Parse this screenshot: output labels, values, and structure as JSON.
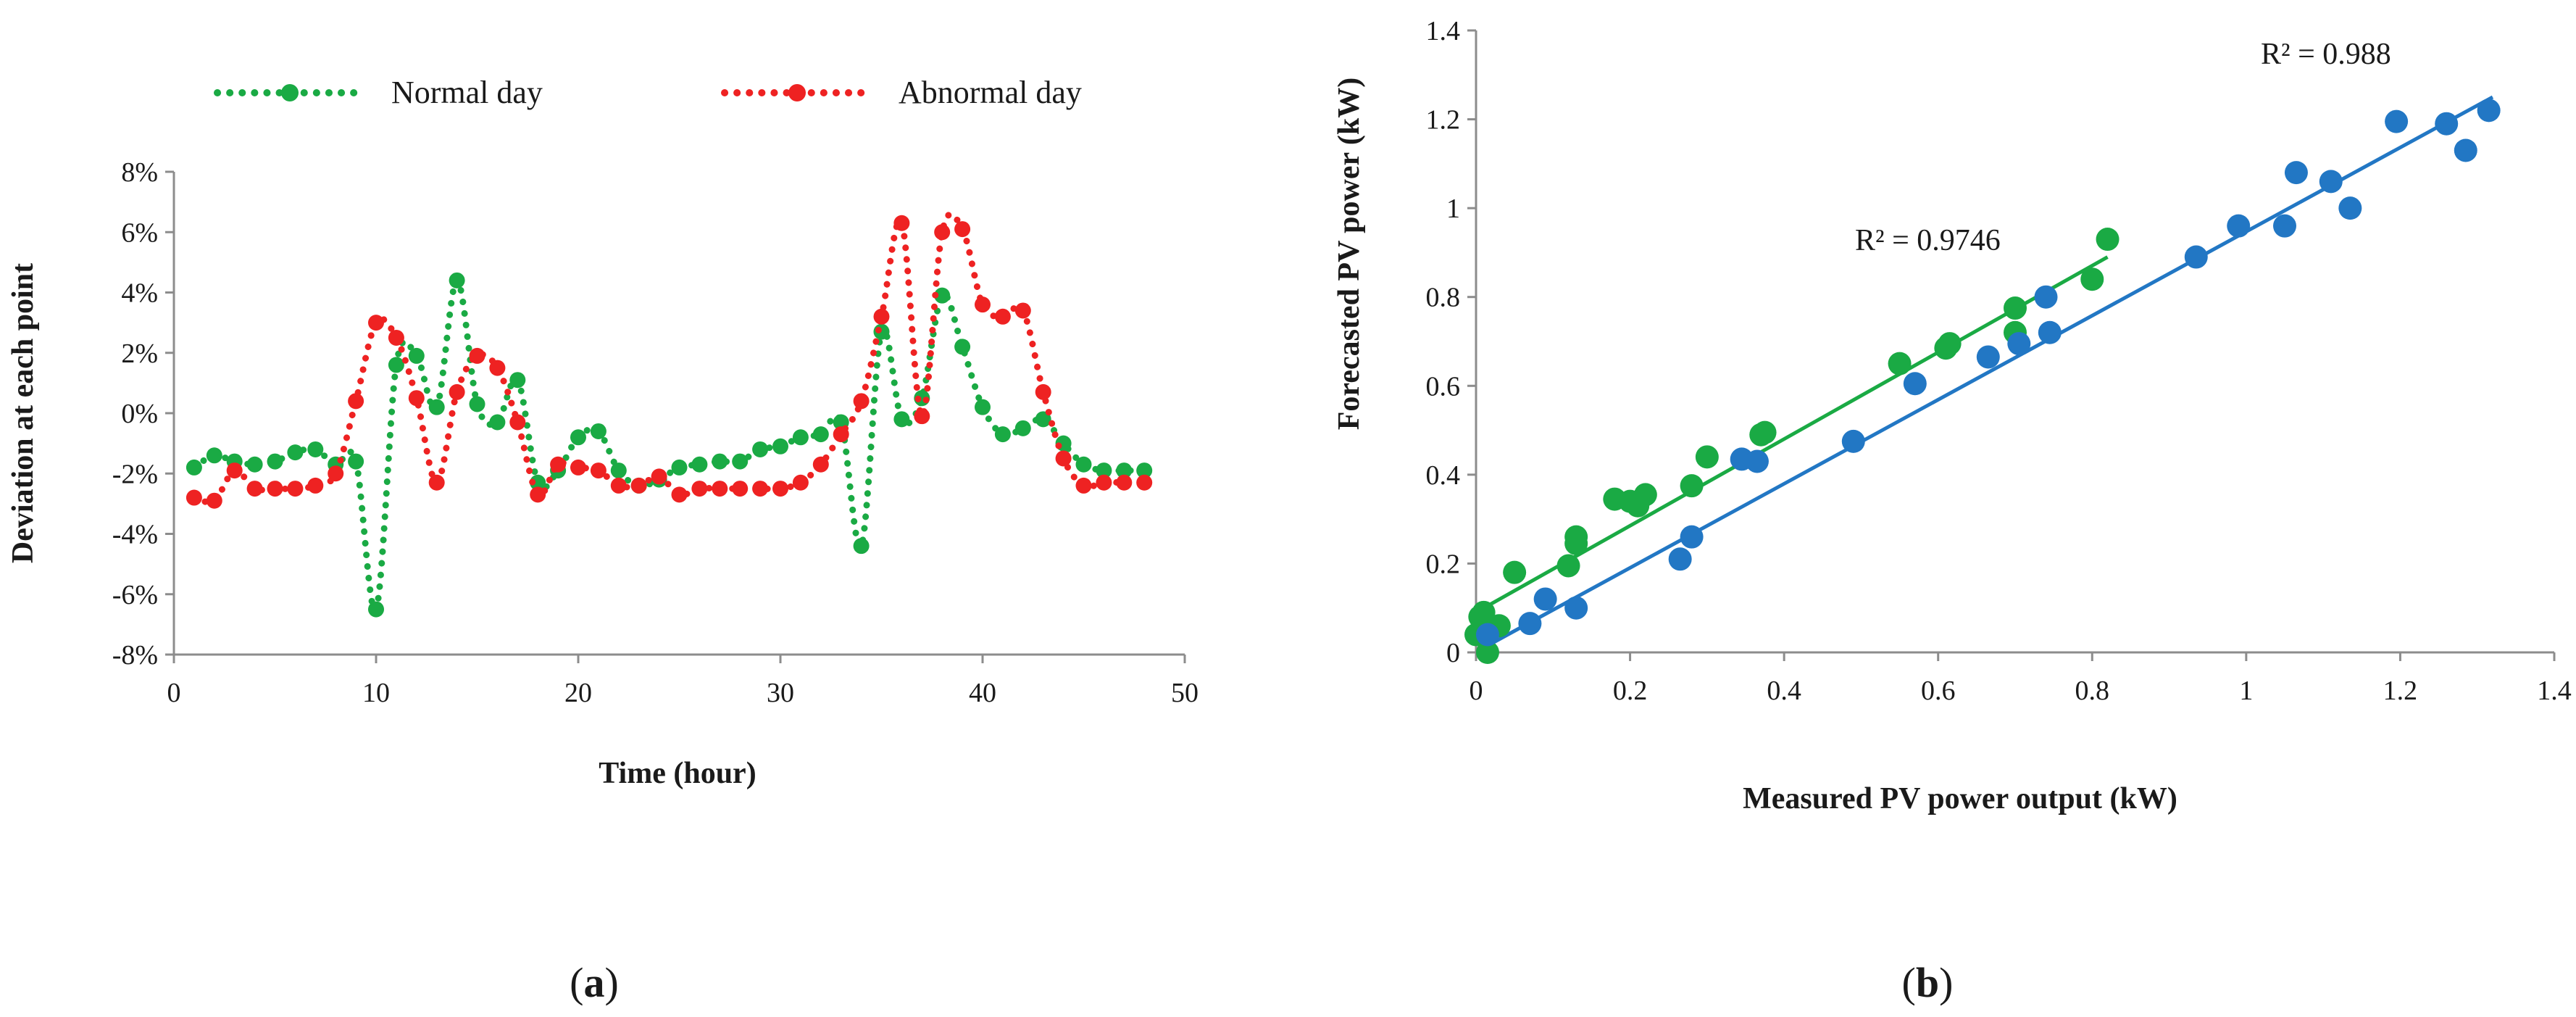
{
  "chart_data": [
    {
      "type": "line",
      "panel_label": "a",
      "title": "",
      "xlabel": "Time (hour)",
      "ylabel": "Deviation at each point",
      "xlim": [
        0,
        50
      ],
      "ylim": [
        -8,
        8
      ],
      "xticks": [
        "0",
        "10",
        "20",
        "30",
        "40",
        "50"
      ],
      "yticks": [
        "-8%",
        "-6%",
        "-4%",
        "-2%",
        "0%",
        "2%",
        "4%",
        "6%",
        "8%"
      ],
      "grid": false,
      "legend_position": "top",
      "series": [
        {
          "name": "Normal day",
          "color": "#1aaa44",
          "x": [
            1,
            2,
            3,
            4,
            5,
            6,
            7,
            8,
            9,
            10,
            11,
            12,
            13,
            14,
            15,
            16,
            17,
            18,
            19,
            20,
            21,
            22,
            23,
            24,
            25,
            26,
            27,
            28,
            29,
            30,
            31,
            32,
            33,
            34,
            35,
            36,
            37,
            38,
            39,
            40,
            41,
            42,
            43,
            44,
            45,
            46,
            47,
            48
          ],
          "y": [
            -1.8,
            -1.4,
            -1.6,
            -1.7,
            -1.6,
            -1.3,
            -1.2,
            -1.7,
            -1.6,
            -6.5,
            1.6,
            1.9,
            0.2,
            4.4,
            0.3,
            -0.3,
            1.1,
            -2.3,
            -1.9,
            -0.8,
            -0.6,
            -1.9,
            -2.4,
            -2.2,
            -1.8,
            -1.7,
            -1.6,
            -1.6,
            -1.2,
            -1.1,
            -0.8,
            -0.7,
            -0.3,
            -4.4,
            2.7,
            -0.2,
            0.5,
            3.9,
            2.2,
            0.2,
            -0.7,
            -0.5,
            -0.2,
            -1.0,
            -1.7,
            -1.9,
            -1.9,
            -1.9
          ]
        },
        {
          "name": "Abnormal day",
          "color": "#ee2222",
          "x": [
            1,
            2,
            3,
            4,
            5,
            6,
            7,
            8,
            9,
            10,
            11,
            12,
            13,
            14,
            15,
            16,
            17,
            18,
            19,
            20,
            21,
            22,
            23,
            24,
            25,
            26,
            27,
            28,
            29,
            30,
            31,
            32,
            33,
            34,
            35,
            36,
            37,
            38,
            39,
            40,
            41,
            42,
            43,
            44,
            45,
            46,
            47,
            48
          ],
          "y": [
            -2.8,
            -2.9,
            -1.9,
            -2.5,
            -2.5,
            -2.5,
            -2.4,
            -2.0,
            0.4,
            3.0,
            2.5,
            0.5,
            -2.3,
            0.7,
            1.9,
            1.5,
            -0.3,
            -2.7,
            -1.7,
            -1.8,
            -1.9,
            -2.4,
            -2.4,
            -2.1,
            -2.7,
            -2.5,
            -2.5,
            -2.5,
            -2.5,
            -2.5,
            -2.3,
            -1.7,
            -0.7,
            0.4,
            3.2,
            6.3,
            -0.1,
            6.0,
            6.1,
            3.6,
            3.2,
            3.4,
            0.7,
            -1.5,
            -2.4,
            -2.3,
            -2.3,
            -2.3
          ]
        }
      ]
    },
    {
      "type": "scatter",
      "panel_label": "b",
      "title": "",
      "xlabel": "Measured PV power output (kW)",
      "ylabel": "Forecasted PV power (kW)",
      "xlim": [
        0,
        1.4
      ],
      "ylim": [
        0,
        1.4
      ],
      "xticks": [
        "0",
        "0.2",
        "0.4",
        "0.6",
        "0.8",
        "1",
        "1.2",
        "1.4"
      ],
      "yticks": [
        "0",
        "0.2",
        "0.4",
        "0.6",
        "0.8",
        "1",
        "1.2",
        "1.4"
      ],
      "grid": false,
      "series": [
        {
          "name": "green",
          "color": "#1aaa44",
          "trendline": {
            "x": [
              0,
              0.82
            ],
            "y": [
              0.09,
              0.89
            ]
          },
          "r_squared_label": "R² = 0.9746",
          "x": [
            0.0,
            0.005,
            0.01,
            0.015,
            0.03,
            0.05,
            0.12,
            0.13,
            0.13,
            0.18,
            0.2,
            0.21,
            0.22,
            0.28,
            0.3,
            0.37,
            0.375,
            0.55,
            0.61,
            0.615,
            0.7,
            0.7,
            0.8,
            0.82
          ],
          "y": [
            0.04,
            0.08,
            0.09,
            0.0,
            0.06,
            0.18,
            0.195,
            0.245,
            0.26,
            0.345,
            0.34,
            0.33,
            0.355,
            0.375,
            0.44,
            0.49,
            0.495,
            0.65,
            0.685,
            0.695,
            0.72,
            0.775,
            0.84,
            0.93
          ]
        },
        {
          "name": "blue",
          "color": "#2277c4",
          "trendline": {
            "x": [
              0.02,
              1.32
            ],
            "y": [
              0.02,
              1.25
            ]
          },
          "r_squared_label": "R² = 0.988",
          "x": [
            0.015,
            0.07,
            0.09,
            0.13,
            0.265,
            0.28,
            0.345,
            0.365,
            0.49,
            0.57,
            0.665,
            0.705,
            0.74,
            0.745,
            0.935,
            0.99,
            1.05,
            1.065,
            1.11,
            1.135,
            1.195,
            1.26,
            1.285,
            1.315
          ],
          "y": [
            0.04,
            0.065,
            0.12,
            0.1,
            0.21,
            0.26,
            0.435,
            0.43,
            0.475,
            0.605,
            0.665,
            0.695,
            0.8,
            0.72,
            0.89,
            0.96,
            0.96,
            1.08,
            1.06,
            1.0,
            1.195,
            1.19,
            1.13,
            1.22
          ]
        }
      ]
    }
  ]
}
